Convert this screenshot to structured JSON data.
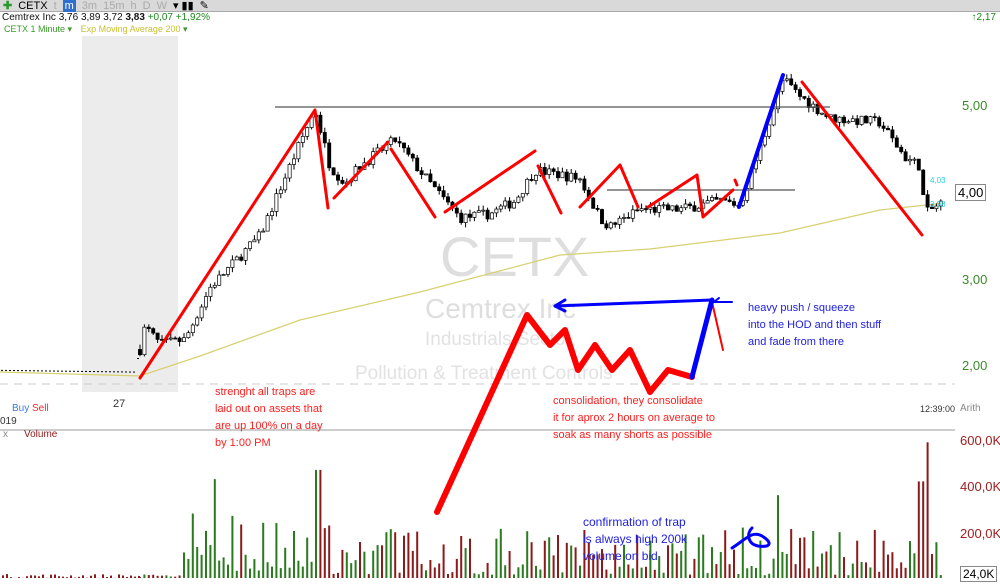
{
  "toolbar": {
    "symbol": "CETX",
    "timeframes": [
      "t",
      "m",
      "3m",
      "15m",
      "h",
      "D",
      "W"
    ],
    "selected": "m"
  },
  "quote": {
    "name": "Cemtrex Inc",
    "open": "3,76",
    "high": "3,89",
    "low": "3,72",
    "last": "3,83",
    "change": "+0,07",
    "change_pct": "+1,92%"
  },
  "top_right_change": "2,17",
  "legend": {
    "series": "CETX 1 Minute",
    "indicator": "Exp Moving Average 200"
  },
  "price_axis": [
    "5,00",
    "4,00",
    "3,00",
    "2,00"
  ],
  "current_price": "4,00",
  "bid": "4,03",
  "ask": "3,98",
  "watermark": {
    "symbol": "CETX",
    "company": "Cemtrex Inc",
    "sector": "Industrials Sector",
    "industry": "Pollution & Treatment Controls"
  },
  "date_label": "27",
  "year_label": "019",
  "time_label": "12:39:00",
  "scale_mode": "Arith",
  "trade": {
    "buy": "Buy",
    "sell": "Sell"
  },
  "volume": {
    "label": "Volume",
    "close": "x",
    "axis": [
      "600,0K",
      "400,0K",
      "200,0K"
    ],
    "current": "24,0K"
  },
  "annotations": {
    "strength": [
      "strenght all traps are",
      "laid out on assets that",
      "are up 100% on a day",
      "by 1:00 PM"
    ],
    "consolidation": [
      "consolidation, they consolidate",
      "it for aprox 2 hours on average to",
      "soak as many shorts as possible"
    ],
    "squeeze": [
      "heavy push / squeeze",
      "into the HOD and then stuff",
      "and fade from there"
    ],
    "confirmation": [
      "confirmation of trap",
      "is always high 200k",
      "volume on bid"
    ]
  },
  "colors": {
    "up": "#2a7a1e",
    "down": "#8b1a1a",
    "ema": "#d8d070",
    "annotation_red": "#ff0000",
    "annotation_blue": "#0000ff"
  }
}
